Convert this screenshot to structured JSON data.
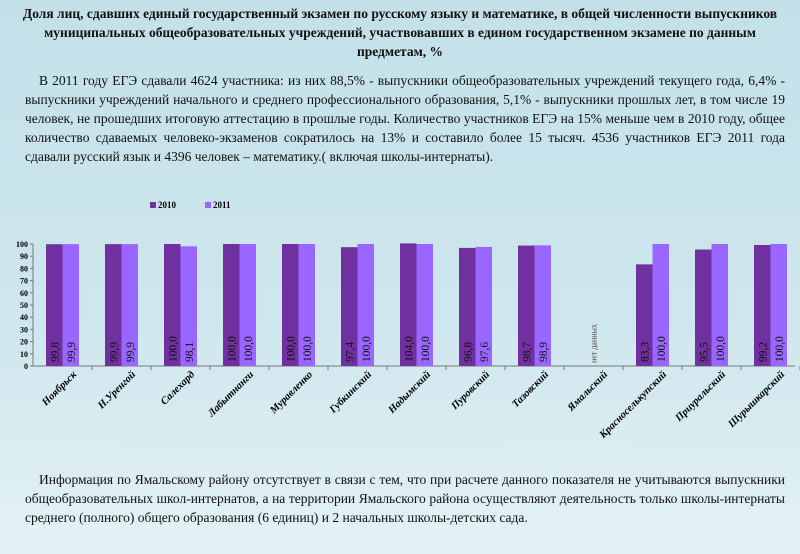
{
  "title": "Доля лиц, сдавших единый государственный экзамен по русскому языку и математике, в общей численности выпускников муниципальных общеобразовательных учреждений, участвовавших в едином государственном экзамене по данным предметам, %",
  "intro": "В 2011 году ЕГЭ сдавали 4624 участника: из них 88,5% - выпускники общеобразовательных учреждений текущего года, 6,4% - выпускники учреждений начального и среднего профессионального образования, 5,1% - выпускники прошлых лет, в том числе 19 человек, не прошедших итоговую аттестацию в прошлые годы. Количество участников ЕГЭ на 15% меньше чем в 2010 году, общее количество сдаваемых человеко-экзаменов сократилось на 13% и составило более 15 тысяч. 4536 участников ЕГЭ 2011 года сдавали русский язык и 4396 человек – математику.( включая школы-интернаты).",
  "footer": "Информация по Ямальскому району отсутствует в связи с тем, что при расчете данного показателя не учитываются выпускники общеобразовательных школ-интернатов, а на территории Ямальского района осуществляют деятельность только школы-интернаты среднего (полного) общего образования (6 единиц) и 2 начальных школы-детских сада.",
  "chart_data": {
    "type": "bar",
    "categories": [
      "Ноябрьск",
      "Н.Уренгой",
      "Салехард",
      "Лабытнанги",
      "Муравленко",
      "Губкинский",
      "Надымский",
      "Пуровский",
      "Тазовский",
      "Ямальский",
      "Красноселькупский",
      "Приуральский",
      "Шурышкарский"
    ],
    "series": [
      {
        "name": "2010",
        "color": "#7030a0",
        "values": [
          99.8,
          99.9,
          100.0,
          100.0,
          100.0,
          97.4,
          104.0,
          96.8,
          98.7,
          null,
          83.3,
          95.5,
          99.2
        ],
        "labels": [
          "99,8",
          "99,9",
          "100,0",
          "100,0",
          "100,0",
          "97,4",
          "104,0",
          "96,8",
          "98,7",
          "",
          "83,3",
          "95,5",
          "99,2"
        ]
      },
      {
        "name": "2011",
        "color": "#9966ff",
        "values": [
          99.9,
          99.9,
          98.1,
          100.0,
          100.0,
          100.0,
          100.0,
          97.6,
          98.9,
          null,
          100.0,
          100.0,
          100.0
        ],
        "labels": [
          "99,9",
          "99,9",
          "98,1",
          "100,0",
          "100,0",
          "100,0",
          "100,0",
          "97,6",
          "98,9",
          "",
          "100,0",
          "100,0",
          "100,0"
        ]
      }
    ],
    "no_data_label": "нет данных",
    "yticks": [
      0,
      10,
      20,
      30,
      40,
      50,
      60,
      70,
      80,
      90,
      100
    ],
    "ylim": [
      0,
      100
    ],
    "legend": "top",
    "grid": false
  }
}
